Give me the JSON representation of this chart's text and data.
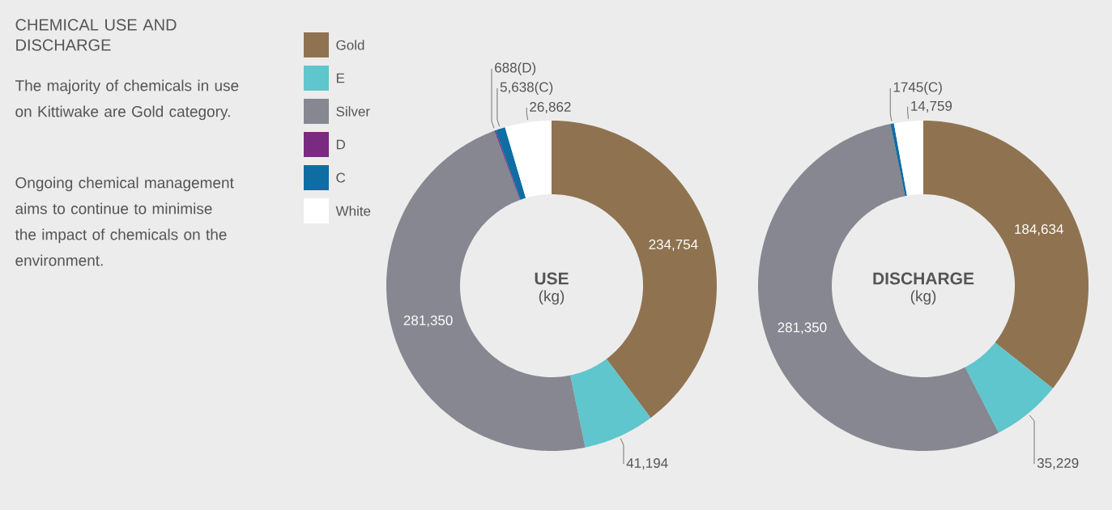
{
  "chart_data": [
    {
      "type": "other",
      "title": "CHEMICAL USE AND DISCHARGE",
      "annotations": [
        "The majority of chemicals in use on Kittiwake are Gold category.",
        "Ongoing chemical management aims to continue to minimise the impact of chemicals on the environment."
      ]
    },
    {
      "type": "donut",
      "title": "USE",
      "subtitle": "(kg)",
      "legend": "left",
      "categories": [
        "Gold",
        "E",
        "Silver",
        "D",
        "C",
        "White"
      ],
      "values": [
        234754,
        41194,
        281350,
        688,
        5638,
        26862
      ],
      "colors": [
        "#8f7350",
        "#5ec6cc",
        "#868790",
        "#7a2a80",
        "#0f6da3",
        "#ffffff"
      ],
      "value_labels": [
        "234,754",
        "41,194",
        "281,350",
        "688(D)",
        "5,638(C)",
        "26,862"
      ]
    },
    {
      "type": "donut",
      "title": "DISCHARGE",
      "subtitle": "(kg)",
      "categories": [
        null,
        null,
        null,
        null,
        null
      ],
      "values": [
        184634,
        35229,
        281350,
        1745,
        14759
      ],
      "colors": [
        "#8f7350",
        "#5ec6cc",
        "#868790",
        "#0f6da3",
        "#ffffff"
      ],
      "value_labels": [
        "184,634",
        "35,229",
        "281,350",
        "1745(C)",
        "14,759"
      ]
    }
  ]
}
